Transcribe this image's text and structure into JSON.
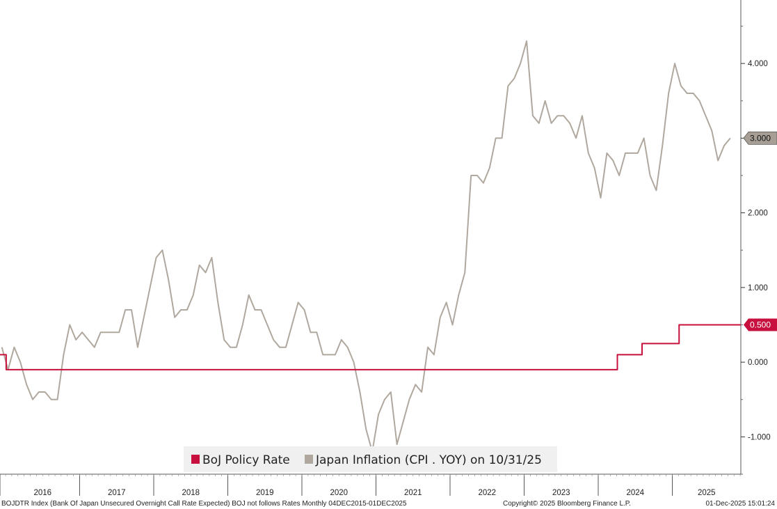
{
  "chart_data": {
    "type": "line",
    "title": "",
    "xlabel": "",
    "ylabel": "",
    "x_range": [
      "2015-12",
      "2025-12"
    ],
    "ylim": [
      -1.5,
      4.85
    ],
    "y_ticks": [
      -1.0,
      0.0,
      1.0,
      2.0,
      3.0,
      4.0
    ],
    "y_tick_labels": [
      "-1.000",
      "0.000",
      "1.000",
      "2.000",
      "3.000",
      "4.000"
    ],
    "x_year_labels": [
      "2016",
      "2017",
      "2018",
      "2019",
      "2020",
      "2021",
      "2022",
      "2023",
      "2024",
      "2025"
    ],
    "grid": false,
    "legend_position": "bottom-center",
    "colors": {
      "boj": "#c8103e",
      "cpi": "#b0a89e",
      "cpi_badge": "#a79f95"
    },
    "series": [
      {
        "name": "BoJ Policy Rate",
        "key": "boj",
        "step": true,
        "points": [
          [
            "2015-12",
            0.1
          ],
          [
            "2016-01",
            -0.1
          ],
          [
            "2024-03",
            -0.1
          ],
          [
            "2024-04",
            0.1
          ],
          [
            "2024-07",
            0.1
          ],
          [
            "2024-08",
            0.25
          ],
          [
            "2025-01",
            0.25
          ],
          [
            "2025-02",
            0.5
          ],
          [
            "2025-12",
            0.5
          ]
        ],
        "last_value_label": "0.500"
      },
      {
        "name": "Japan Inflation (CPI . YOY) on 10/31/25",
        "key": "cpi",
        "step": false,
        "points": [
          [
            "2015-12",
            0.2
          ],
          [
            "2016-01",
            -0.1
          ],
          [
            "2016-02",
            0.2
          ],
          [
            "2016-03",
            0.0
          ],
          [
            "2016-04",
            -0.3
          ],
          [
            "2016-05",
            -0.5
          ],
          [
            "2016-06",
            -0.4
          ],
          [
            "2016-07",
            -0.4
          ],
          [
            "2016-08",
            -0.5
          ],
          [
            "2016-09",
            -0.5
          ],
          [
            "2016-10",
            0.1
          ],
          [
            "2016-11",
            0.5
          ],
          [
            "2016-12",
            0.3
          ],
          [
            "2017-01",
            0.4
          ],
          [
            "2017-02",
            0.3
          ],
          [
            "2017-03",
            0.2
          ],
          [
            "2017-04",
            0.4
          ],
          [
            "2017-05",
            0.4
          ],
          [
            "2017-06",
            0.4
          ],
          [
            "2017-07",
            0.4
          ],
          [
            "2017-08",
            0.7
          ],
          [
            "2017-09",
            0.7
          ],
          [
            "2017-10",
            0.2
          ],
          [
            "2017-11",
            0.6
          ],
          [
            "2017-12",
            1.0
          ],
          [
            "2018-01",
            1.4
          ],
          [
            "2018-02",
            1.5
          ],
          [
            "2018-03",
            1.1
          ],
          [
            "2018-04",
            0.6
          ],
          [
            "2018-05",
            0.7
          ],
          [
            "2018-06",
            0.7
          ],
          [
            "2018-07",
            0.9
          ],
          [
            "2018-08",
            1.3
          ],
          [
            "2018-09",
            1.2
          ],
          [
            "2018-10",
            1.4
          ],
          [
            "2018-11",
            0.8
          ],
          [
            "2018-12",
            0.3
          ],
          [
            "2019-01",
            0.2
          ],
          [
            "2019-02",
            0.2
          ],
          [
            "2019-03",
            0.5
          ],
          [
            "2019-04",
            0.9
          ],
          [
            "2019-05",
            0.7
          ],
          [
            "2019-06",
            0.7
          ],
          [
            "2019-07",
            0.5
          ],
          [
            "2019-08",
            0.3
          ],
          [
            "2019-09",
            0.2
          ],
          [
            "2019-10",
            0.2
          ],
          [
            "2019-11",
            0.5
          ],
          [
            "2019-12",
            0.8
          ],
          [
            "2020-01",
            0.7
          ],
          [
            "2020-02",
            0.4
          ],
          [
            "2020-03",
            0.4
          ],
          [
            "2020-04",
            0.1
          ],
          [
            "2020-05",
            0.1
          ],
          [
            "2020-06",
            0.1
          ],
          [
            "2020-07",
            0.3
          ],
          [
            "2020-08",
            0.2
          ],
          [
            "2020-09",
            0.0
          ],
          [
            "2020-10",
            -0.4
          ],
          [
            "2020-11",
            -0.9
          ],
          [
            "2020-12",
            -1.2
          ],
          [
            "2021-01",
            -0.7
          ],
          [
            "2021-02",
            -0.5
          ],
          [
            "2021-03",
            -0.4
          ],
          [
            "2021-04",
            -1.1
          ],
          [
            "2021-05",
            -0.8
          ],
          [
            "2021-06",
            -0.5
          ],
          [
            "2021-07",
            -0.3
          ],
          [
            "2021-08",
            -0.4
          ],
          [
            "2021-09",
            0.2
          ],
          [
            "2021-10",
            0.1
          ],
          [
            "2021-11",
            0.6
          ],
          [
            "2021-12",
            0.8
          ],
          [
            "2022-01",
            0.5
          ],
          [
            "2022-02",
            0.9
          ],
          [
            "2022-03",
            1.2
          ],
          [
            "2022-04",
            2.5
          ],
          [
            "2022-05",
            2.5
          ],
          [
            "2022-06",
            2.4
          ],
          [
            "2022-07",
            2.6
          ],
          [
            "2022-08",
            3.0
          ],
          [
            "2022-09",
            3.0
          ],
          [
            "2022-10",
            3.7
          ],
          [
            "2022-11",
            3.8
          ],
          [
            "2022-12",
            4.0
          ],
          [
            "2023-01",
            4.3
          ],
          [
            "2023-02",
            3.3
          ],
          [
            "2023-03",
            3.2
          ],
          [
            "2023-04",
            3.5
          ],
          [
            "2023-05",
            3.2
          ],
          [
            "2023-06",
            3.3
          ],
          [
            "2023-07",
            3.3
          ],
          [
            "2023-08",
            3.2
          ],
          [
            "2023-09",
            3.0
          ],
          [
            "2023-10",
            3.3
          ],
          [
            "2023-11",
            2.8
          ],
          [
            "2023-12",
            2.6
          ],
          [
            "2024-01",
            2.2
          ],
          [
            "2024-02",
            2.8
          ],
          [
            "2024-03",
            2.7
          ],
          [
            "2024-04",
            2.5
          ],
          [
            "2024-05",
            2.8
          ],
          [
            "2024-06",
            2.8
          ],
          [
            "2024-07",
            2.8
          ],
          [
            "2024-08",
            3.0
          ],
          [
            "2024-09",
            2.5
          ],
          [
            "2024-10",
            2.3
          ],
          [
            "2024-11",
            2.9
          ],
          [
            "2024-12",
            3.6
          ],
          [
            "2025-01",
            4.0
          ],
          [
            "2025-02",
            3.7
          ],
          [
            "2025-03",
            3.6
          ],
          [
            "2025-04",
            3.6
          ],
          [
            "2025-05",
            3.5
          ],
          [
            "2025-06",
            3.3
          ],
          [
            "2025-07",
            3.1
          ],
          [
            "2025-08",
            2.7
          ],
          [
            "2025-09",
            2.9
          ],
          [
            "2025-10",
            3.0
          ]
        ],
        "last_value_label": "3.000"
      }
    ]
  },
  "legend": {
    "items": [
      {
        "label": "BoJ Policy Rate",
        "color_key": "boj"
      },
      {
        "label": "Japan Inflation (CPI . YOY) on 10/31/25",
        "color_key": "cpi"
      }
    ]
  },
  "footer": {
    "description": "BOJDTR Index (Bank Of Japan Unsecured Overnight Call Rate Expected) BOJ not follows Rates Monthly 04DEC2015-01DEC2025",
    "copyright": "Copyright© 2025 Bloomberg Finance L.P.",
    "timestamp": "01-Dec-2025 15:01:24"
  }
}
